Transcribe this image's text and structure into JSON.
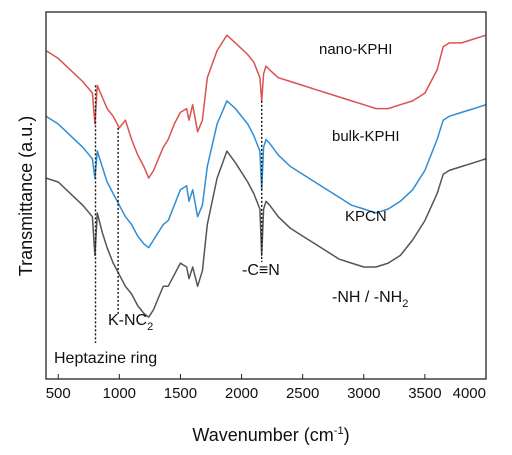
{
  "chart_data": {
    "type": "line",
    "xlabel": "Wavenumber (cm",
    "xlabel_sup": "-1",
    "xlabel_tail": ")",
    "ylabel": "Transmittance (a.u.)",
    "xlim": [
      400,
      4000
    ],
    "x_ticks": [
      500,
      1000,
      1500,
      2000,
      2500,
      3000,
      3500,
      4000
    ],
    "y_ticks_shown": false,
    "grid": false,
    "legend": "none (labels placed next to curves)",
    "series": [
      {
        "name": "nano-KPHI",
        "color": "#d9534f",
        "x": [
          400,
          500,
          600,
          700,
          780,
          800,
          820,
          860,
          900,
          950,
          1000,
          1050,
          1100,
          1150,
          1200,
          1240,
          1280,
          1320,
          1360,
          1400,
          1450,
          1500,
          1550,
          1570,
          1600,
          1640,
          1680,
          1720,
          1800,
          1880,
          1950,
          2050,
          2100,
          2150,
          2165,
          2180,
          2200,
          2230,
          2300,
          2400,
          2500,
          2600,
          2700,
          2800,
          2900,
          3000,
          3100,
          3200,
          3300,
          3400,
          3500,
          3600,
          3650,
          3700,
          3800,
          3900,
          4000
        ],
        "y": [
          5.3,
          5.1,
          4.8,
          4.5,
          4.2,
          3.4,
          4.4,
          4.1,
          3.8,
          3.6,
          3.3,
          3.5,
          3.0,
          2.6,
          2.3,
          2.0,
          2.2,
          2.5,
          2.8,
          3.0,
          3.4,
          3.7,
          3.8,
          3.5,
          3.9,
          3.2,
          3.5,
          4.6,
          5.3,
          5.7,
          5.5,
          5.2,
          5.0,
          4.6,
          4.0,
          4.7,
          4.9,
          4.8,
          4.6,
          4.5,
          4.4,
          4.3,
          4.2,
          4.1,
          4.0,
          3.9,
          3.8,
          3.8,
          3.9,
          4.0,
          4.2,
          4.8,
          5.4,
          5.5,
          5.5,
          5.6,
          5.7
        ]
      },
      {
        "name": "bulk-KPHI",
        "color": "#2f8ed4",
        "x": [
          400,
          500,
          600,
          700,
          780,
          800,
          820,
          860,
          900,
          950,
          1000,
          1050,
          1100,
          1150,
          1200,
          1240,
          1280,
          1320,
          1360,
          1400,
          1450,
          1500,
          1550,
          1570,
          1600,
          1640,
          1680,
          1720,
          1800,
          1880,
          1950,
          2050,
          2100,
          2150,
          2165,
          2180,
          2200,
          2230,
          2300,
          2400,
          2500,
          2600,
          2700,
          2800,
          2900,
          3000,
          3100,
          3200,
          3300,
          3400,
          3500,
          3600,
          3650,
          3700,
          3800,
          3900,
          4000
        ],
        "y": [
          3.6,
          3.4,
          3.1,
          2.8,
          2.5,
          2.0,
          2.7,
          2.3,
          1.9,
          1.6,
          1.3,
          1.0,
          0.8,
          0.5,
          0.3,
          0.2,
          0.4,
          0.6,
          0.8,
          0.9,
          1.3,
          1.7,
          1.8,
          1.4,
          1.7,
          1.0,
          1.3,
          2.3,
          3.4,
          4.0,
          3.8,
          3.4,
          3.1,
          2.7,
          1.7,
          2.8,
          3.0,
          2.9,
          2.6,
          2.3,
          2.1,
          1.9,
          1.7,
          1.5,
          1.3,
          1.2,
          1.1,
          1.2,
          1.4,
          1.7,
          2.2,
          3.0,
          3.5,
          3.6,
          3.7,
          3.8,
          3.9
        ]
      },
      {
        "name": "KPCN",
        "color": "#555555",
        "x": [
          400,
          500,
          600,
          700,
          780,
          800,
          820,
          860,
          900,
          950,
          1000,
          1050,
          1100,
          1150,
          1200,
          1240,
          1280,
          1320,
          1360,
          1400,
          1450,
          1500,
          1550,
          1570,
          1600,
          1640,
          1680,
          1720,
          1800,
          1880,
          1950,
          2050,
          2100,
          2150,
          2165,
          2180,
          2200,
          2230,
          2300,
          2400,
          2500,
          2600,
          2700,
          2800,
          2900,
          3000,
          3100,
          3200,
          3300,
          3400,
          3500,
          3600,
          3650,
          3700,
          3800,
          3900,
          4000
        ],
        "y": [
          2.0,
          1.9,
          1.6,
          1.3,
          1.0,
          0.0,
          1.1,
          0.6,
          0.2,
          -0.2,
          -0.5,
          -0.8,
          -1.0,
          -1.3,
          -1.5,
          -1.6,
          -1.4,
          -1.1,
          -0.8,
          -0.8,
          -0.5,
          -0.2,
          -0.3,
          -0.6,
          -0.3,
          -0.8,
          -0.4,
          0.8,
          2.0,
          2.7,
          2.4,
          1.9,
          1.6,
          1.2,
          0.0,
          1.2,
          1.4,
          1.3,
          1.0,
          0.7,
          0.5,
          0.3,
          0.1,
          -0.1,
          -0.2,
          -0.3,
          -0.3,
          -0.2,
          0.0,
          0.4,
          0.9,
          1.6,
          2.1,
          2.2,
          2.3,
          2.4,
          2.5
        ]
      }
    ],
    "annotations": {
      "heptazine": "Heptazine ring",
      "knc_prefix": "K-NC",
      "knc_sub": "2",
      "cn": "-C≡N",
      "nh_prefix": "-NH / -NH",
      "nh_sub": "2"
    },
    "guide_lines_x": [
      805,
      990,
      2165
    ]
  }
}
